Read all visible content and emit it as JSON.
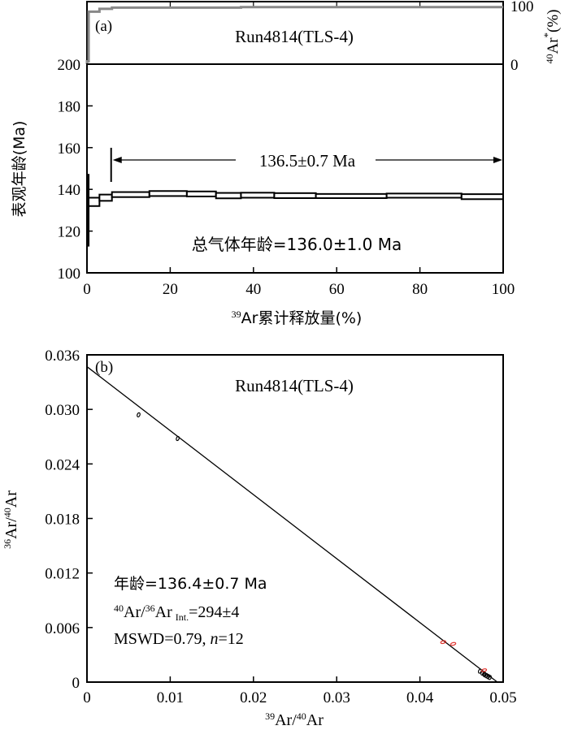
{
  "chart_data": [
    {
      "panel_label": "(a)",
      "type": "area",
      "sample": "Run4814(TLS-4)",
      "xlabel_sup": "39",
      "xlabel_main": "Ar累计释放量(%)",
      "ylabel": "表观年龄(Ma)",
      "xlim": [
        0,
        100
      ],
      "ylim": [
        100,
        200
      ],
      "xticks": [
        "0",
        "20",
        "40",
        "60",
        "80",
        "100"
      ],
      "yticks": [
        "100",
        "120",
        "140",
        "160",
        "180",
        "200"
      ],
      "plateau_age_label": "136.5±0.7 Ma",
      "plateau_range": [
        6,
        100
      ],
      "total_gas_age_label": "总气体年龄=136.0±1.0 Ma",
      "age_steps": [
        {
          "x0": 0,
          "x1": 0.4,
          "age": 130,
          "err": 17
        },
        {
          "x0": 0.4,
          "x1": 3,
          "age": 134,
          "err": 2.0
        },
        {
          "x0": 3,
          "x1": 6,
          "age": 136,
          "err": 1.5
        },
        {
          "x0": 6,
          "x1": 15,
          "age": 137.5,
          "err": 1.2
        },
        {
          "x0": 15,
          "x1": 24,
          "age": 138,
          "err": 1.2
        },
        {
          "x0": 24,
          "x1": 31,
          "age": 137.8,
          "err": 1.2
        },
        {
          "x0": 31,
          "x1": 37,
          "age": 137,
          "err": 1.3
        },
        {
          "x0": 37,
          "x1": 45,
          "age": 137.2,
          "err": 1.2
        },
        {
          "x0": 45,
          "x1": 55,
          "age": 137,
          "err": 1.2
        },
        {
          "x0": 55,
          "x1": 72,
          "age": 136.8,
          "err": 1.0
        },
        {
          "x0": 72,
          "x1": 90,
          "age": 137,
          "err": 1.0
        },
        {
          "x0": 90,
          "x1": 100,
          "age": 136.5,
          "err": 1.2
        }
      ],
      "radiogenic": {
        "label_sup1": "40",
        "label_main": "Ar",
        "label_sup2": "*",
        "label_tail": "(%)",
        "ylim": [
          0,
          100
        ],
        "yticks": [
          "0",
          "100"
        ],
        "steps": [
          {
            "x0": 0,
            "x1": 0.4,
            "value": 5
          },
          {
            "x0": 0.4,
            "x1": 3,
            "value": 91
          },
          {
            "x0": 3,
            "x1": 6,
            "value": 96
          },
          {
            "x0": 6,
            "x1": 37,
            "value": 98
          },
          {
            "x0": 37,
            "x1": 100,
            "value": 99
          }
        ]
      }
    },
    {
      "panel_label": "(b)",
      "type": "scatter",
      "sample": "Run4814(TLS-4)",
      "xlabel_sup": "39",
      "xlabel_main": "Ar/",
      "xlabel_sup2": "40",
      "xlabel_tail": "Ar",
      "ylabel_sup": "36",
      "ylabel_main": "Ar/",
      "ylabel_sup2": "40",
      "ylabel_tail": "Ar",
      "xlim": [
        0,
        0.05
      ],
      "ylim": [
        0,
        0.036
      ],
      "xticks": [
        "0",
        "0.01",
        "0.02",
        "0.03",
        "0.04",
        "0.05"
      ],
      "yticks": [
        "0",
        "0.006",
        "0.012",
        "0.018",
        "0.024",
        "0.030",
        "0.036"
      ],
      "isochron_line": {
        "x": [
          0,
          0.0493
        ],
        "y": [
          0.0347,
          0
        ]
      },
      "points_black": [
        {
          "x": 0.0062,
          "y": 0.0294
        },
        {
          "x": 0.0109,
          "y": 0.0268
        },
        {
          "x": 0.0472,
          "y": 0.0012
        },
        {
          "x": 0.0475,
          "y": 0.001
        },
        {
          "x": 0.0477,
          "y": 0.0009
        },
        {
          "x": 0.0478,
          "y": 0.0008
        },
        {
          "x": 0.048,
          "y": 0.0007
        },
        {
          "x": 0.0482,
          "y": 0.0006
        },
        {
          "x": 0.0484,
          "y": 0.0005
        }
      ],
      "points_red": [
        {
          "x": 0.0428,
          "y": 0.0044
        },
        {
          "x": 0.044,
          "y": 0.0042
        },
        {
          "x": 0.0477,
          "y": 0.0013
        }
      ],
      "colors": {
        "excluded": "#e0312b",
        "included": "#000000"
      },
      "annotation_age": "年龄=136.4±0.7 Ma",
      "annotation_ratio_sup1": "40",
      "annotation_ratio_a": "Ar/",
      "annotation_ratio_sup2": "36",
      "annotation_ratio_b": "Ar",
      "annotation_ratio_sub": "Int.",
      "annotation_ratio_val": "=294±4",
      "annotation_mswd_a": "MSWD=0.79, ",
      "annotation_mswd_n": "n",
      "annotation_mswd_b": "=12"
    }
  ]
}
